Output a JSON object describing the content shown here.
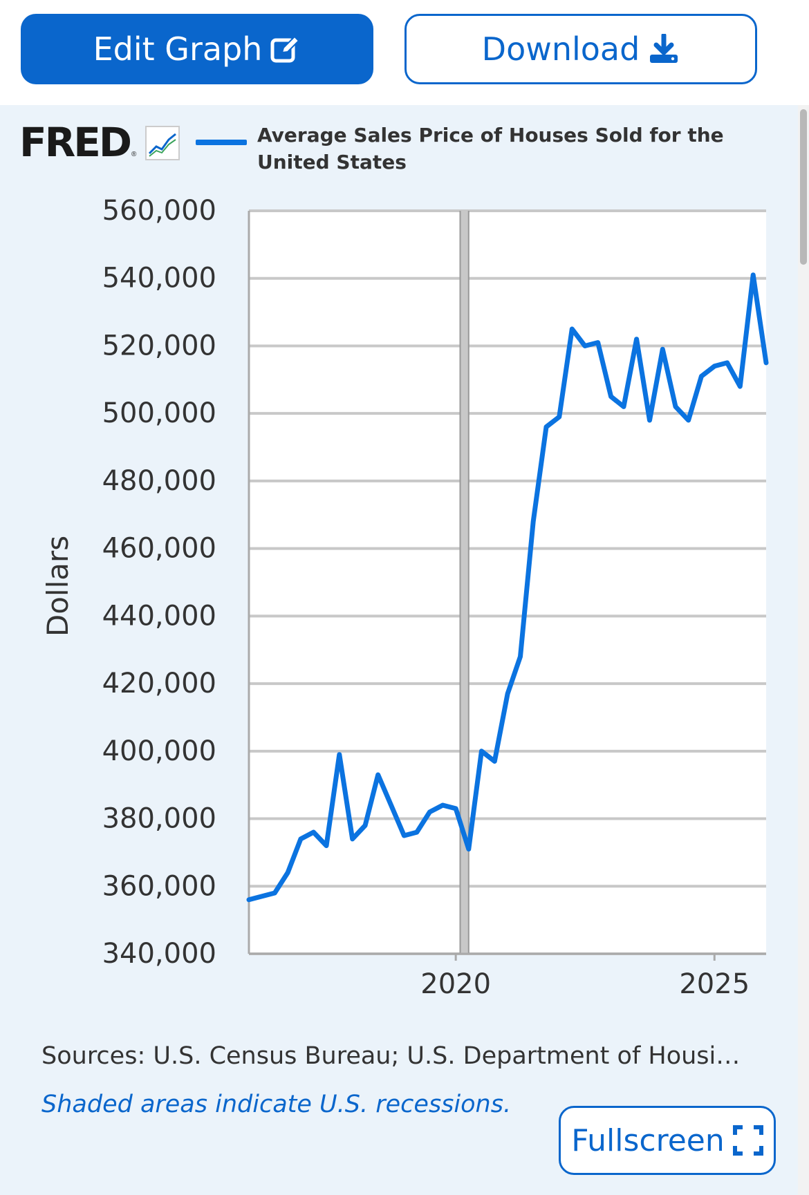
{
  "toolbar": {
    "edit_label": "Edit Graph",
    "edit_icon": "edit-icon",
    "download_label": "Download",
    "download_icon": "download-icon"
  },
  "brand": {
    "logo_text": "FRED",
    "logo_mark": "®"
  },
  "footer": {
    "sources": "Sources: U.S. Census Bureau; U.S. Department of Housing and Urban Development",
    "recession_note": "Shaded areas indicate U.S. recessions.",
    "fullscreen_label": "Fullscreen",
    "fullscreen_icon": "fullscreen-icon"
  },
  "colors": {
    "accent": "#0a66cc",
    "series": "#0b73e0",
    "panel": "#ebf3fa",
    "grid": "#c8c8c8"
  },
  "chart_data": {
    "type": "line",
    "title": "",
    "ylabel": "Dollars",
    "xlabel": "",
    "ylim": [
      340000,
      560000
    ],
    "y_ticks": [
      340000,
      360000,
      380000,
      400000,
      420000,
      440000,
      460000,
      480000,
      500000,
      520000,
      540000,
      560000
    ],
    "x_ticks": [
      "2020",
      "2025"
    ],
    "x_tick_dates": [
      "2020-01-01",
      "2025-01-01"
    ],
    "x_range": [
      "2016-01-01",
      "2026-01-01"
    ],
    "grid": true,
    "legend": "top",
    "series": [
      {
        "name": "Average Sales Price of Houses Sold for the United States",
        "x": [
          "2016-01-01",
          "2016-04-01",
          "2016-07-01",
          "2016-10-01",
          "2017-01-01",
          "2017-04-01",
          "2017-07-01",
          "2017-10-01",
          "2018-01-01",
          "2018-04-01",
          "2018-07-01",
          "2018-10-01",
          "2019-01-01",
          "2019-04-01",
          "2019-07-01",
          "2019-10-01",
          "2020-01-01",
          "2020-04-01",
          "2020-07-01",
          "2020-10-01",
          "2021-01-01",
          "2021-04-01",
          "2021-07-01",
          "2021-10-01",
          "2022-01-01",
          "2022-04-01",
          "2022-07-01",
          "2022-10-01",
          "2023-01-01",
          "2023-04-01",
          "2023-07-01",
          "2023-10-01",
          "2024-01-01",
          "2024-04-01",
          "2024-07-01",
          "2024-10-01",
          "2025-01-01",
          "2025-04-01",
          "2025-07-01",
          "2025-10-01",
          "2026-01-01"
        ],
        "values": [
          356000,
          357000,
          358000,
          364000,
          374000,
          376000,
          372000,
          399000,
          374000,
          378000,
          393000,
          384000,
          375000,
          376000,
          382000,
          384000,
          383000,
          371000,
          400000,
          397000,
          417000,
          428000,
          468000,
          496000,
          499000,
          525000,
          520000,
          521000,
          505000,
          502000,
          522000,
          498000,
          519000,
          502000,
          498000,
          511000,
          514000,
          515000,
          508000,
          541000,
          515000
        ]
      }
    ]
  }
}
